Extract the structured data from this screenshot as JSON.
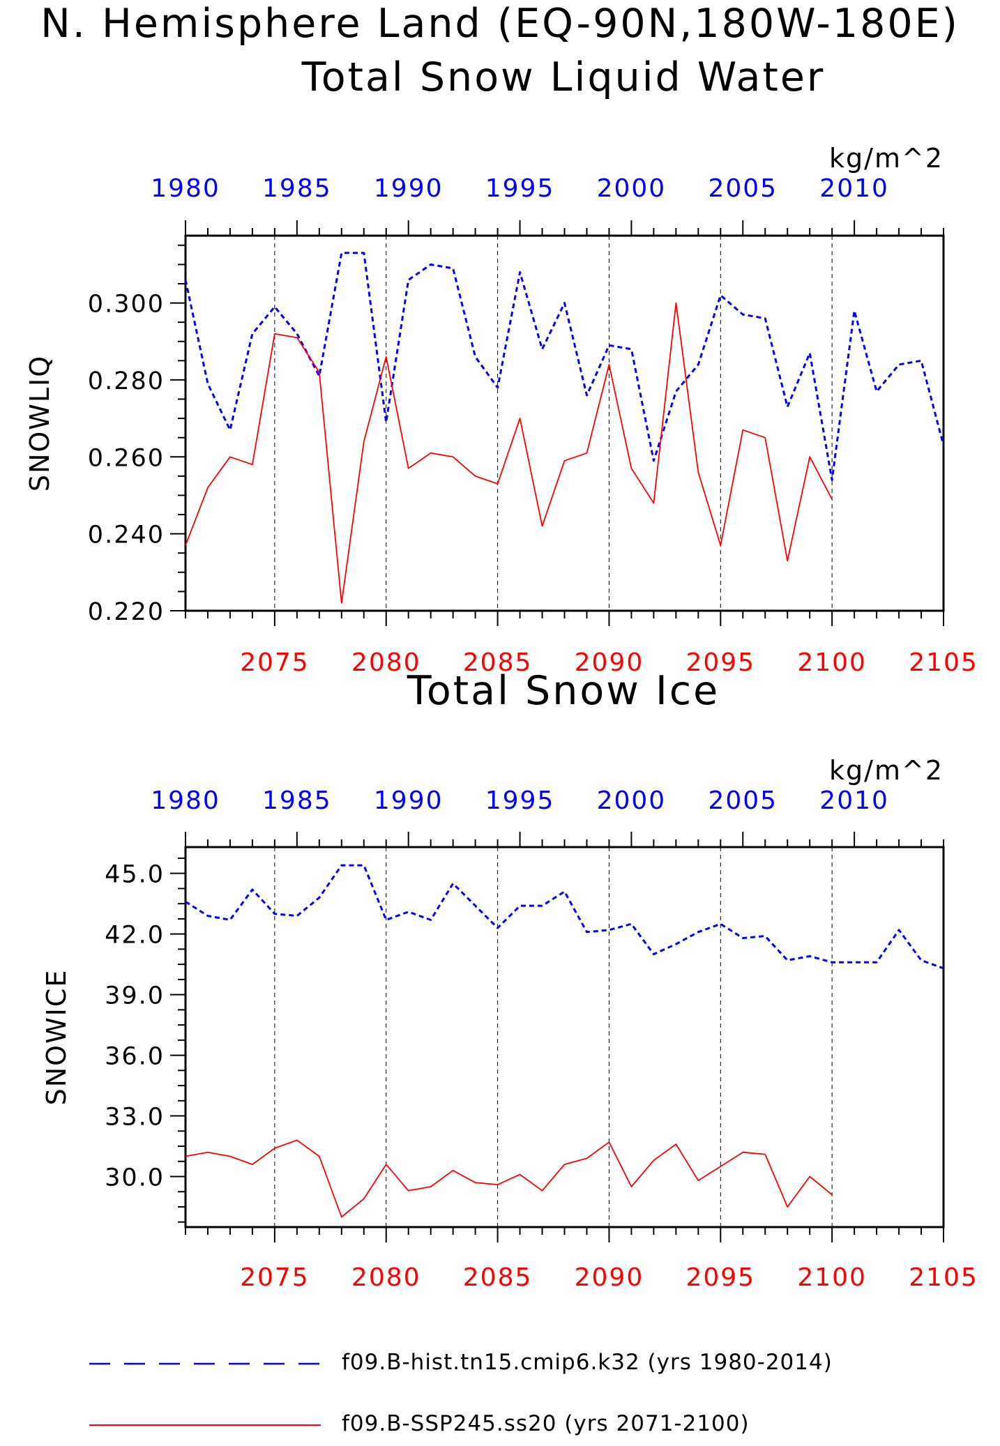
{
  "figure": {
    "title": "N. Hemisphere Land (EQ-90N,180W-180E)"
  },
  "legend": {
    "items": [
      {
        "label": "f09.B-hist.tn15.cmip6.k32 (yrs 1980-2014)",
        "color": "#0000ff",
        "style": "dashed"
      },
      {
        "label": "f09.B-SSP245.ss20 (yrs 2071-2100)",
        "color": "#ff0000",
        "style": "solid"
      }
    ]
  },
  "chart_data": [
    {
      "type": "line",
      "title": "Total Snow Liquid Water",
      "ylabel": "SNOWLIQ",
      "units": "kg/m^2",
      "ylim": [
        0.22,
        0.3175
      ],
      "yticks": [
        0.22,
        0.24,
        0.26,
        0.28,
        0.3
      ],
      "ytick_labels": [
        "0.220",
        "0.240",
        "0.260",
        "0.280",
        "0.300"
      ],
      "top_axis": {
        "color": "#0000ff",
        "range": [
          1980,
          2014
        ],
        "ticks": [
          1980,
          1985,
          1990,
          1995,
          2000,
          2005,
          2010
        ]
      },
      "bottom_axis": {
        "color": "#ff0000",
        "range": [
          2071,
          2105
        ],
        "ticks": [
          2075,
          2080,
          2085,
          2090,
          2095,
          2100,
          2105
        ]
      },
      "grid": "vertical dashed lines at bottom-axis major ticks",
      "series": [
        {
          "name": "f09.B-hist.tn15.cmip6.k32 (yrs 1980-2014)",
          "axis": "top",
          "color": "#0000ff",
          "style": "dashed",
          "x": [
            1980,
            1981,
            1982,
            1983,
            1984,
            1985,
            1986,
            1987,
            1988,
            1989,
            1990,
            1991,
            1992,
            1993,
            1994,
            1995,
            1996,
            1997,
            1998,
            1999,
            2000,
            2001,
            2002,
            2003,
            2004,
            2005,
            2006,
            2007,
            2008,
            2009,
            2010,
            2011,
            2012,
            2013,
            2014
          ],
          "values": [
            0.306,
            0.279,
            0.267,
            0.292,
            0.299,
            0.292,
            0.281,
            0.313,
            0.313,
            0.269,
            0.306,
            0.31,
            0.309,
            0.286,
            0.278,
            0.308,
            0.288,
            0.3,
            0.276,
            0.289,
            0.288,
            0.259,
            0.277,
            0.284,
            0.302,
            0.297,
            0.296,
            0.273,
            0.287,
            0.254,
            0.298,
            0.277,
            0.284,
            0.285,
            0.263
          ]
        },
        {
          "name": "f09.B-SSP245.ss20 (yrs 2071-2100)",
          "axis": "bottom",
          "color": "#ff0000",
          "style": "solid",
          "x": [
            2071,
            2072,
            2073,
            2074,
            2075,
            2076,
            2077,
            2078,
            2079,
            2080,
            2081,
            2082,
            2083,
            2084,
            2085,
            2086,
            2087,
            2088,
            2089,
            2090,
            2091,
            2092,
            2093,
            2094,
            2095,
            2096,
            2097,
            2098,
            2099,
            2100
          ],
          "values": [
            0.237,
            0.252,
            0.26,
            0.258,
            0.292,
            0.291,
            0.282,
            0.222,
            0.264,
            0.286,
            0.257,
            0.261,
            0.26,
            0.255,
            0.253,
            0.27,
            0.242,
            0.259,
            0.261,
            0.284,
            0.257,
            0.248,
            0.3,
            0.256,
            0.237,
            0.267,
            0.265,
            0.233,
            0.26,
            0.249
          ]
        }
      ]
    },
    {
      "type": "line",
      "title": "Total Snow Ice",
      "ylabel": "SNOWICE",
      "units": "kg/m^2",
      "ylim": [
        27.5,
        46.3
      ],
      "yticks": [
        30.0,
        33.0,
        36.0,
        39.0,
        42.0,
        45.0
      ],
      "ytick_labels": [
        "30.0",
        "33.0",
        "36.0",
        "39.0",
        "42.0",
        "45.0"
      ],
      "top_axis": {
        "color": "#0000ff",
        "range": [
          1980,
          2014
        ],
        "ticks": [
          1980,
          1985,
          1990,
          1995,
          2000,
          2005,
          2010
        ]
      },
      "bottom_axis": {
        "color": "#ff0000",
        "range": [
          2071,
          2105
        ],
        "ticks": [
          2075,
          2080,
          2085,
          2090,
          2095,
          2100,
          2105
        ]
      },
      "grid": "vertical dashed lines at bottom-axis major ticks",
      "series": [
        {
          "name": "f09.B-hist.tn15.cmip6.k32 (yrs 1980-2014)",
          "axis": "top",
          "color": "#0000ff",
          "style": "dashed",
          "x": [
            1980,
            1981,
            1982,
            1983,
            1984,
            1985,
            1986,
            1987,
            1988,
            1989,
            1990,
            1991,
            1992,
            1993,
            1994,
            1995,
            1996,
            1997,
            1998,
            1999,
            2000,
            2001,
            2002,
            2003,
            2004,
            2005,
            2006,
            2007,
            2008,
            2009,
            2010,
            2011,
            2012,
            2013,
            2014
          ],
          "values": [
            43.6,
            42.9,
            42.7,
            44.2,
            43.0,
            42.9,
            43.8,
            45.4,
            45.4,
            42.7,
            43.1,
            42.7,
            44.5,
            43.4,
            42.3,
            43.4,
            43.4,
            44.1,
            42.1,
            42.2,
            42.5,
            41.0,
            41.5,
            42.1,
            42.5,
            41.8,
            41.9,
            40.7,
            40.9,
            40.6,
            40.6,
            40.6,
            42.2,
            40.7,
            40.3
          ]
        },
        {
          "name": "f09.B-SSP245.ss20 (yrs 2071-2100)",
          "axis": "bottom",
          "color": "#ff0000",
          "style": "solid",
          "x": [
            2071,
            2072,
            2073,
            2074,
            2075,
            2076,
            2077,
            2078,
            2079,
            2080,
            2081,
            2082,
            2083,
            2084,
            2085,
            2086,
            2087,
            2088,
            2089,
            2090,
            2091,
            2092,
            2093,
            2094,
            2095,
            2096,
            2097,
            2098,
            2099,
            2100
          ],
          "values": [
            31.0,
            31.2,
            31.0,
            30.6,
            31.4,
            31.8,
            31.0,
            28.0,
            28.9,
            30.6,
            29.3,
            29.5,
            30.3,
            29.7,
            29.6,
            30.1,
            29.3,
            30.6,
            30.9,
            31.7,
            29.5,
            30.8,
            31.6,
            29.8,
            30.5,
            31.2,
            31.1,
            28.5,
            30.0,
            29.1
          ]
        }
      ]
    }
  ]
}
